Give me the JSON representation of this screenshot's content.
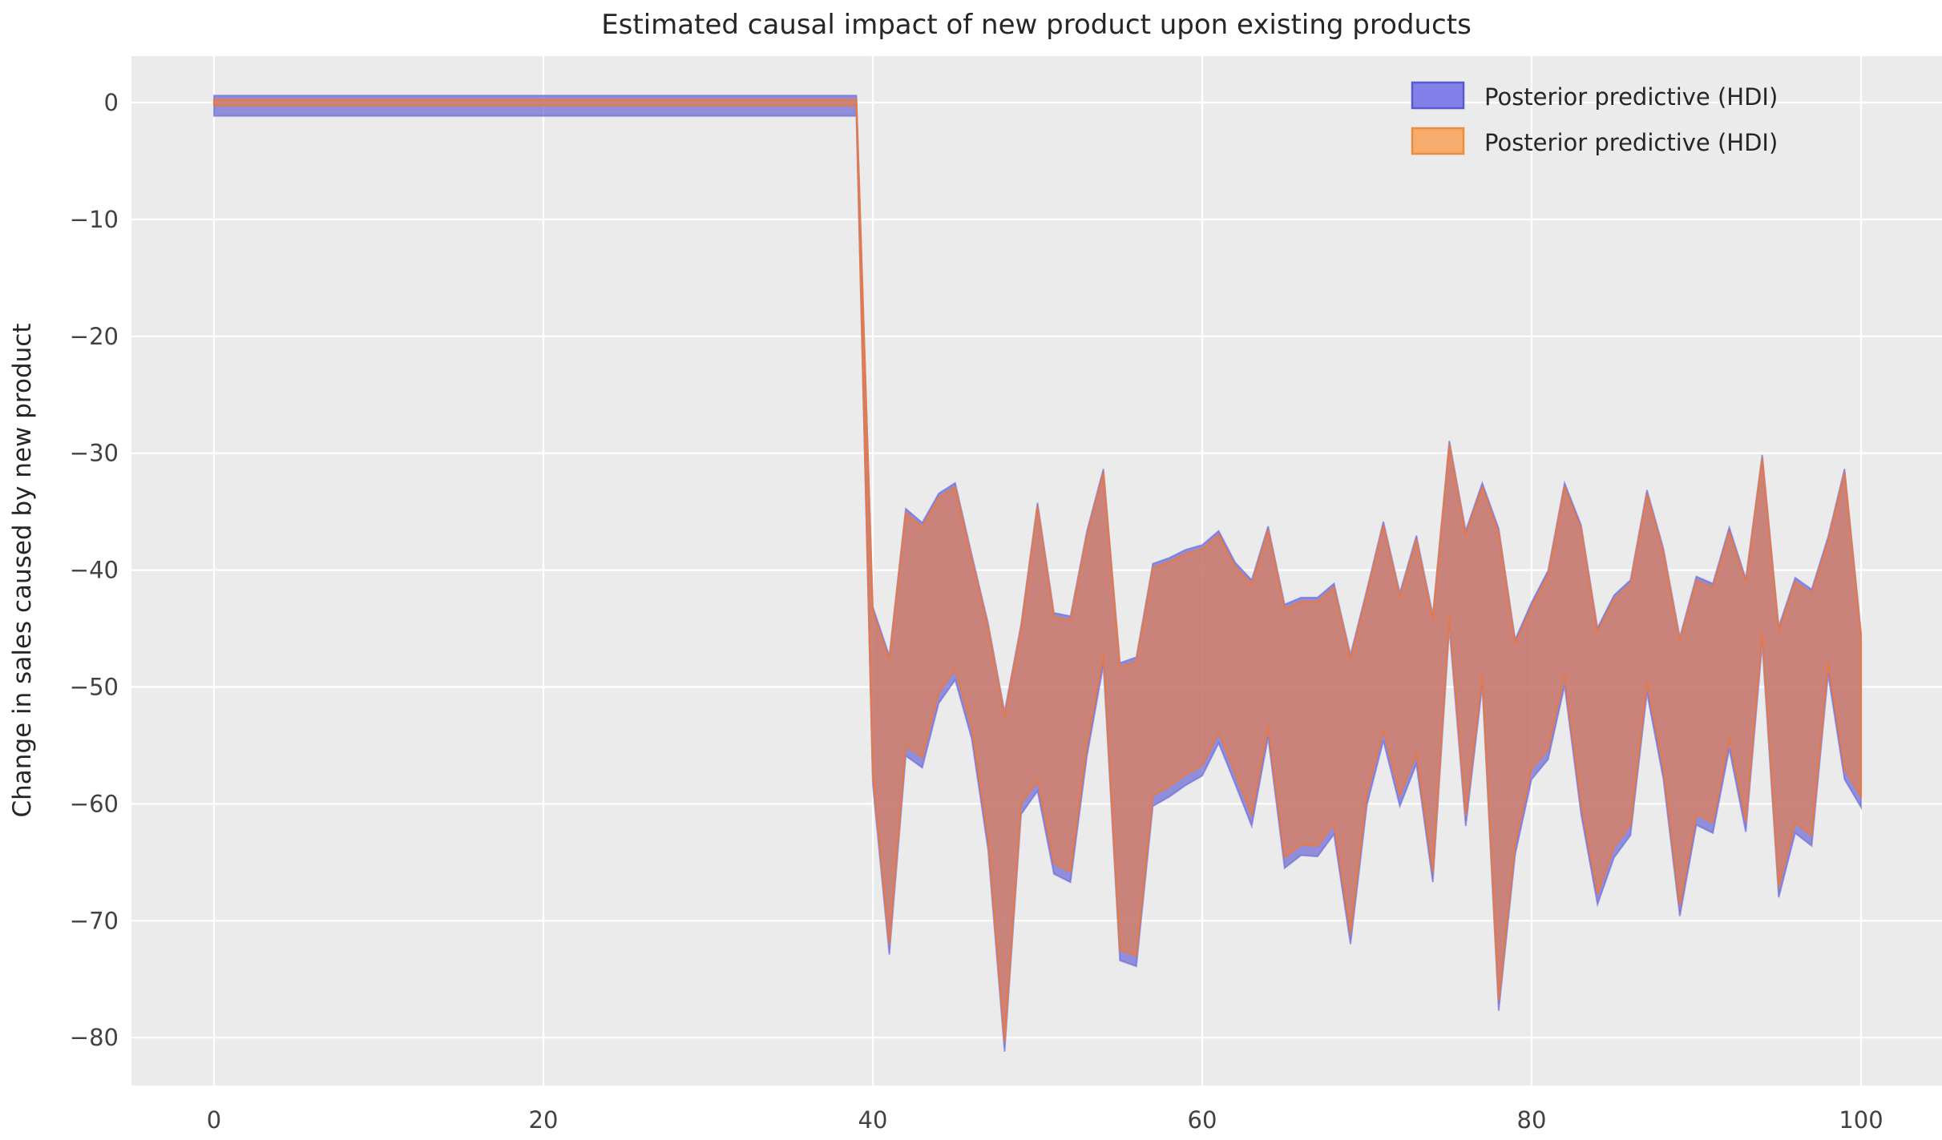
{
  "title": "Estimated causal impact of new product upon existing products",
  "ylabel": "Change in sales caused by new product",
  "legend": {
    "items": [
      {
        "label": "Posterior predictive (HDI)",
        "fill": "#8181e9",
        "edge": "#5a5ad0",
        "series": "blue-hdi"
      },
      {
        "label": "Posterior predictive (HDI)",
        "fill": "#f8ac6c",
        "edge": "#ec8d3d",
        "series": "orange-hdi"
      }
    ]
  },
  "colors": {
    "plot_bg": "#ebebeb",
    "grid": "#ffffff",
    "band_blue_fill": "rgba(95,92,210,0.65)",
    "band_blue_edge": "rgba(100,100,215,0.60)",
    "band_orange_fill": "rgba(230,125,75,0.68)",
    "band_orange_edge": "rgba(235,120,62,0.85)",
    "title_text": "#262626",
    "tick_text": "#424242"
  },
  "chart_data": {
    "type": "area",
    "title": "Estimated causal impact of new product upon existing products",
    "xlabel": "",
    "ylabel": "Change in sales caused by new product",
    "legend_position": "upper right",
    "grid": true,
    "xlim": [
      -5,
      105
    ],
    "ylim": [
      -84.1,
      4.0
    ],
    "xticks": [
      0,
      20,
      40,
      60,
      80,
      100
    ],
    "yticks": [
      0,
      -10,
      -20,
      -30,
      -40,
      -50,
      -60,
      -70,
      -80
    ],
    "ytick_labels": [
      "0",
      "−10",
      "−20",
      "−30",
      "−40",
      "−50",
      "−60",
      "−70",
      "−80"
    ],
    "xtick_labels": [
      "0",
      "20",
      "40",
      "60",
      "80",
      "100"
    ],
    "intervention_x": 40,
    "x": [
      0,
      1,
      2,
      3,
      4,
      5,
      6,
      7,
      8,
      9,
      10,
      11,
      12,
      13,
      14,
      15,
      16,
      17,
      18,
      19,
      20,
      21,
      22,
      23,
      24,
      25,
      26,
      27,
      28,
      29,
      30,
      31,
      32,
      33,
      34,
      35,
      36,
      37,
      38,
      39,
      40,
      41,
      42,
      43,
      44,
      45,
      46,
      47,
      48,
      49,
      50,
      51,
      52,
      53,
      54,
      55,
      56,
      57,
      58,
      59,
      60,
      61,
      62,
      63,
      64,
      65,
      66,
      67,
      68,
      69,
      70,
      71,
      72,
      73,
      74,
      75,
      76,
      77,
      78,
      79,
      80,
      81,
      82,
      83,
      84,
      85,
      86,
      87,
      88,
      89,
      90,
      91,
      92,
      93,
      94,
      95,
      96,
      97,
      98,
      99,
      100
    ],
    "series": [
      {
        "name": "Posterior predictive (HDI) upper",
        "values": [
          0.25,
          0.25,
          0.25,
          0.25,
          0.25,
          0.25,
          0.25,
          0.25,
          0.25,
          0.25,
          0.25,
          0.25,
          0.25,
          0.25,
          0.25,
          0.25,
          0.25,
          0.25,
          0.25,
          0.25,
          0.25,
          0.25,
          0.25,
          0.25,
          0.25,
          0.25,
          0.25,
          0.25,
          0.25,
          0.25,
          0.25,
          0.25,
          0.25,
          0.25,
          0.25,
          0.25,
          0.25,
          0.25,
          0.25,
          0.25,
          -43.5,
          -47.7,
          -35.1,
          -36.3,
          -33.8,
          -32.9,
          -39.0,
          -44.9,
          -52.5,
          -45.0,
          -34.6,
          -44.0,
          -44.3,
          -37.0,
          -31.7,
          -48.3,
          -47.8,
          -39.8,
          -39.3,
          -38.6,
          -38.2,
          -37.0,
          -39.7,
          -41.2,
          -36.6,
          -43.3,
          -42.7,
          -42.7,
          -41.5,
          -47.6,
          -42.0,
          -36.2,
          -42.3,
          -37.4,
          -44.2,
          -29.3,
          -37.0,
          -32.9,
          -36.8,
          -46.3,
          -43.1,
          -40.4,
          -32.9,
          -36.5,
          -45.3,
          -42.5,
          -41.2,
          -33.5,
          -38.5,
          -46.1,
          -40.9,
          -41.5,
          -36.7,
          -41.1,
          -30.5,
          -45.2,
          -41.0,
          -42.0,
          -37.5,
          -31.7,
          -45.7
        ]
      },
      {
        "name": "Posterior predictive (HDI) lower",
        "values": [
          -0.25,
          -0.25,
          -0.25,
          -0.25,
          -0.25,
          -0.25,
          -0.25,
          -0.25,
          -0.25,
          -0.25,
          -0.25,
          -0.25,
          -0.25,
          -0.25,
          -0.25,
          -0.25,
          -0.25,
          -0.25,
          -0.25,
          -0.25,
          -0.25,
          -0.25,
          -0.25,
          -0.25,
          -0.25,
          -0.25,
          -0.25,
          -0.25,
          -0.25,
          -0.25,
          -0.25,
          -0.25,
          -0.25,
          -0.25,
          -0.25,
          -0.25,
          -0.25,
          -0.25,
          -0.25,
          -0.25,
          -57.5,
          -72.0,
          -55.0,
          -56.0,
          -50.5,
          -48.5,
          -53.5,
          -63.0,
          -80.3,
          -60.0,
          -58.0,
          -65.1,
          -65.8,
          -55.0,
          -47.2,
          -72.5,
          -73.0,
          -59.3,
          -58.5,
          -57.5,
          -56.7,
          -53.9,
          -57.4,
          -61.0,
          -53.4,
          -64.6,
          -63.5,
          -63.6,
          -61.7,
          -71.1,
          -59.2,
          -53.7,
          -59.3,
          -55.7,
          -65.8,
          -44.0,
          -61.0,
          -49.0,
          -76.8,
          -63.4,
          -57.0,
          -55.3,
          -49.0,
          -60.0,
          -67.7,
          -63.7,
          -61.8,
          -49.6,
          -57.0,
          -68.7,
          -60.9,
          -61.6,
          -54.4,
          -61.5,
          -45.4,
          -67.1,
          -61.6,
          -62.7,
          -48.0,
          -57.0,
          -59.4
        ]
      }
    ]
  }
}
